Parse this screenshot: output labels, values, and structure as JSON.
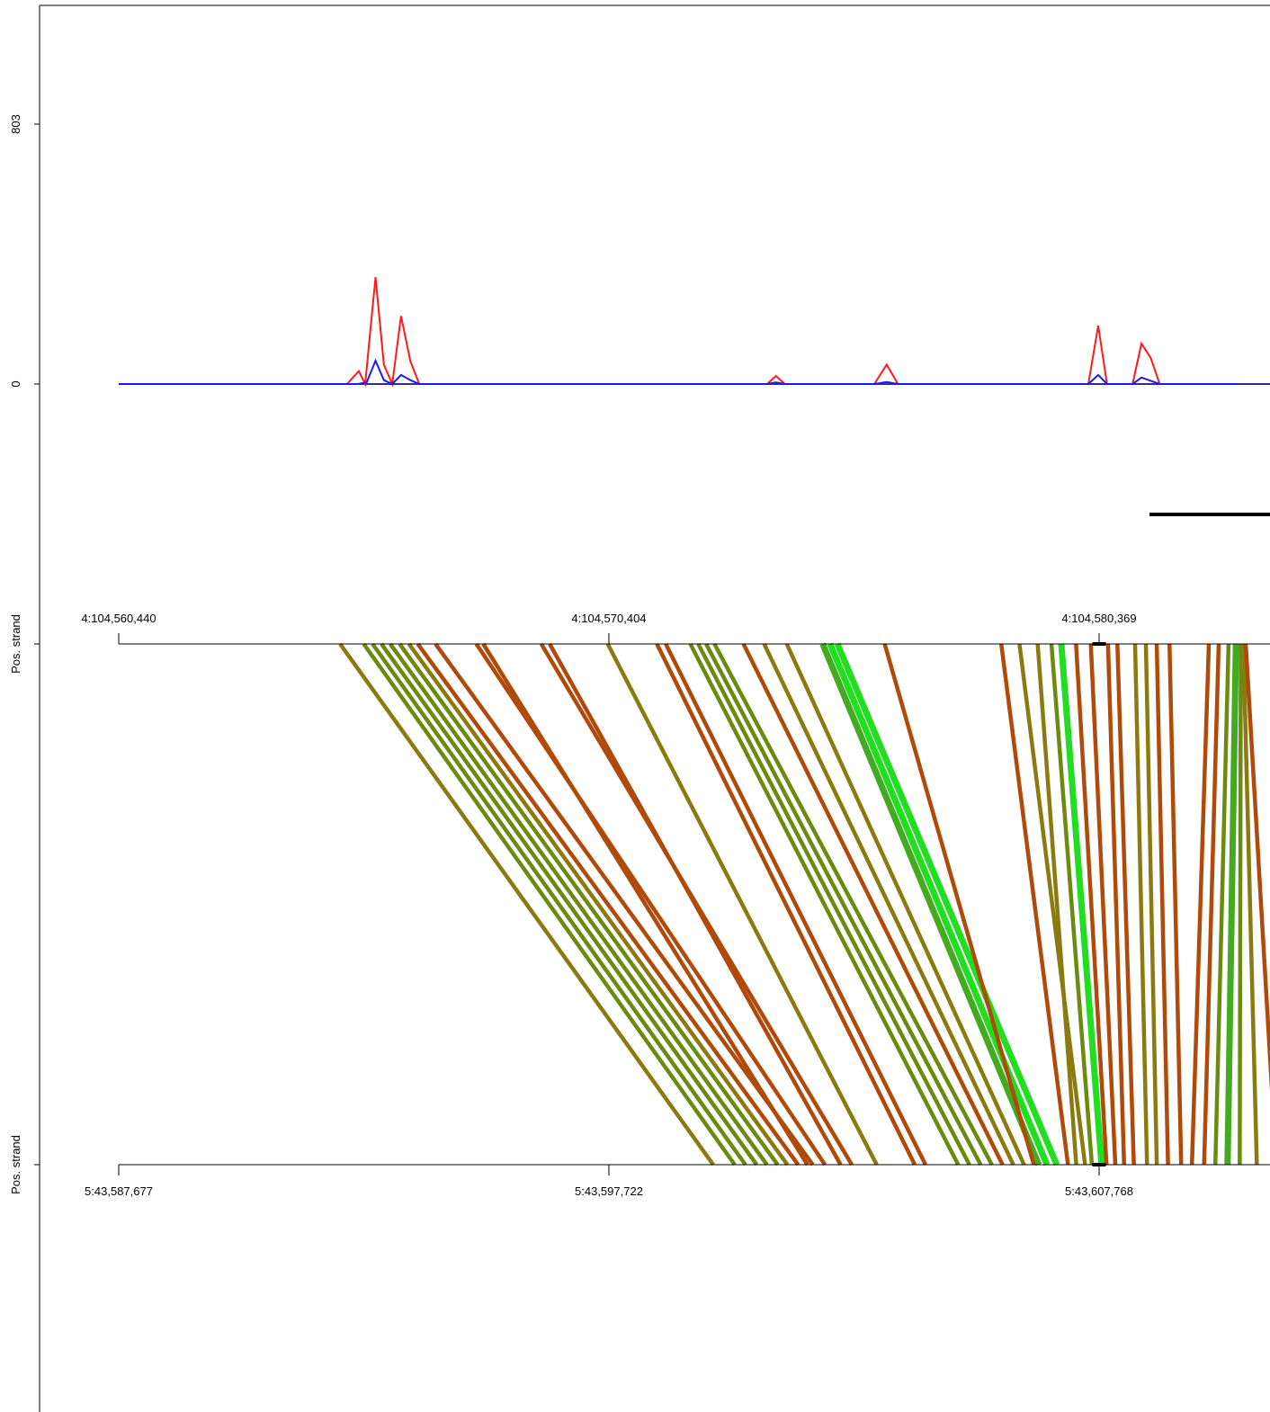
{
  "colors": {
    "signal_top": "#ff1a1a",
    "signal_bottom": "#1a1aff",
    "signal_baseline": "#3a2a8a",
    "axis": "#000000",
    "frame": "#555555",
    "link_orange": "#b04a0a",
    "link_olive": "#8a7a10",
    "link_olive_green": "#6a8a10",
    "link_green": "#22dd22",
    "link_green_mid": "#44aa22"
  },
  "chart_data": [
    {
      "type": "line",
      "title": "",
      "ylabel": "",
      "yticks": [
        "0",
        "803"
      ],
      "ylim": [
        0,
        803
      ],
      "x_range": [
        104560440,
        104583200
      ],
      "series": [
        {
          "color_key": "signal_top",
          "points": [
            [
              104560440,
              0
            ],
            [
              104565080,
              0
            ],
            [
              104565320,
              40
            ],
            [
              104565450,
              0
            ],
            [
              104565660,
              330
            ],
            [
              104565830,
              60
            ],
            [
              104566000,
              0
            ],
            [
              104566180,
              210
            ],
            [
              104566370,
              70
            ],
            [
              104566550,
              0
            ],
            [
              104573620,
              0
            ],
            [
              104573800,
              25
            ],
            [
              104573980,
              0
            ],
            [
              104575800,
              0
            ],
            [
              104576050,
              60
            ],
            [
              104576280,
              0
            ],
            [
              104580150,
              0
            ],
            [
              104580350,
              180
            ],
            [
              104580530,
              0
            ],
            [
              104581050,
              0
            ],
            [
              104581230,
              125
            ],
            [
              104581420,
              80
            ],
            [
              104581600,
              0
            ],
            [
              104583200,
              0
            ]
          ]
        },
        {
          "color_key": "signal_bottom",
          "points": [
            [
              104560440,
              0
            ],
            [
              104565300,
              0
            ],
            [
              104565480,
              5
            ],
            [
              104565660,
              72
            ],
            [
              104565830,
              12
            ],
            [
              104566000,
              0
            ],
            [
              104566180,
              28
            ],
            [
              104566370,
              12
            ],
            [
              104566550,
              0
            ],
            [
              104573620,
              0
            ],
            [
              104573800,
              5
            ],
            [
              104573980,
              0
            ],
            [
              104575800,
              0
            ],
            [
              104576050,
              6
            ],
            [
              104576280,
              0
            ],
            [
              104580150,
              0
            ],
            [
              104580350,
              28
            ],
            [
              104580530,
              0
            ],
            [
              104581050,
              0
            ],
            [
              104581230,
              20
            ],
            [
              104581420,
              10
            ],
            [
              104581600,
              0
            ],
            [
              104583200,
              0
            ]
          ]
        }
      ]
    },
    {
      "type": "link",
      "top_axis": {
        "ylabel": "Pos. strand",
        "ticks": [
          {
            "value": 104560440,
            "label": "4:104,560,440"
          },
          {
            "value": 104570404,
            "label": "4:104,570,404"
          },
          {
            "value": 104580369,
            "label": "4:104,580,369"
          }
        ]
      },
      "bottom_axis": {
        "ylabel": "Pos. strand",
        "ticks": [
          {
            "value": 43587677,
            "label": "5:43,587,677"
          },
          {
            "value": 43597722,
            "label": "5:43,597,722"
          },
          {
            "value": 43607768,
            "label": "5:43,607,768"
          }
        ]
      },
      "links": [
        {
          "top": 104564940,
          "bottom": 43599860,
          "color_key": "link_olive"
        },
        {
          "top": 104565420,
          "bottom": 43600300,
          "color_key": "link_olive_green"
        },
        {
          "top": 104565600,
          "bottom": 43600520,
          "color_key": "link_olive_green"
        },
        {
          "top": 104565780,
          "bottom": 43600750,
          "color_key": "link_olive_green"
        },
        {
          "top": 104565960,
          "bottom": 43600960,
          "color_key": "link_olive_green"
        },
        {
          "top": 104566150,
          "bottom": 43601180,
          "color_key": "link_olive_green"
        },
        {
          "top": 104566340,
          "bottom": 43601380,
          "color_key": "link_olive"
        },
        {
          "top": 104566520,
          "bottom": 43601600,
          "color_key": "link_orange"
        },
        {
          "top": 104566880,
          "bottom": 43601900,
          "color_key": "link_orange"
        },
        {
          "top": 104567710,
          "bottom": 43602150,
          "color_key": "link_orange"
        },
        {
          "top": 104567850,
          "bottom": 43601790,
          "color_key": "link_orange"
        },
        {
          "top": 104569030,
          "bottom": 43602700,
          "color_key": "link_orange"
        },
        {
          "top": 104569200,
          "bottom": 43602470,
          "color_key": "link_orange"
        },
        {
          "top": 104570380,
          "bottom": 43603210,
          "color_key": "link_olive"
        },
        {
          "top": 104571380,
          "bottom": 43603990,
          "color_key": "link_orange"
        },
        {
          "top": 104571560,
          "bottom": 43604210,
          "color_key": "link_orange"
        },
        {
          "top": 104572060,
          "bottom": 43604880,
          "color_key": "link_olive_green"
        },
        {
          "top": 104572220,
          "bottom": 43605110,
          "color_key": "link_olive_green"
        },
        {
          "top": 104572380,
          "bottom": 43605340,
          "color_key": "link_olive_green"
        },
        {
          "top": 104572550,
          "bottom": 43605570,
          "color_key": "link_olive_green"
        },
        {
          "top": 104573140,
          "bottom": 43605790,
          "color_key": "link_orange"
        },
        {
          "top": 104573560,
          "bottom": 43606010,
          "color_key": "link_olive"
        },
        {
          "top": 104574020,
          "bottom": 43606230,
          "color_key": "link_olive"
        },
        {
          "top": 104574750,
          "bottom": 43606530,
          "color_key": "link_green_mid"
        },
        {
          "top": 104574900,
          "bottom": 43606700,
          "color_key": "link_green"
        },
        {
          "top": 104575050,
          "bottom": 43606900,
          "color_key": "link_green"
        },
        {
          "top": 104576010,
          "bottom": 43606430,
          "color_key": "link_orange"
        },
        {
          "top": 104578380,
          "bottom": 43607130,
          "color_key": "link_orange"
        },
        {
          "top": 104578750,
          "bottom": 43607480,
          "color_key": "link_olive"
        },
        {
          "top": 104579120,
          "bottom": 43607300,
          "color_key": "link_olive"
        },
        {
          "top": 104579400,
          "bottom": 43607620,
          "color_key": "link_olive_green"
        },
        {
          "top": 104579600,
          "bottom": 43607820,
          "color_key": "link_green"
        },
        {
          "top": 104579900,
          "bottom": 43607920,
          "color_key": "link_orange"
        },
        {
          "top": 104580200,
          "bottom": 43608100,
          "color_key": "link_orange"
        },
        {
          "top": 104580550,
          "bottom": 43608280,
          "color_key": "link_orange"
        },
        {
          "top": 104580740,
          "bottom": 43608480,
          "color_key": "link_orange"
        },
        {
          "top": 104581100,
          "bottom": 43608750,
          "color_key": "link_olive"
        },
        {
          "top": 104581320,
          "bottom": 43608950,
          "color_key": "link_olive"
        },
        {
          "top": 104581540,
          "bottom": 43609180,
          "color_key": "link_orange"
        },
        {
          "top": 104581800,
          "bottom": 43609450,
          "color_key": "link_orange"
        },
        {
          "top": 104582600,
          "bottom": 43609670,
          "color_key": "link_orange"
        },
        {
          "top": 104582800,
          "bottom": 43609920,
          "color_key": "link_orange"
        },
        {
          "top": 104583000,
          "bottom": 43610150,
          "color_key": "link_olive_green"
        },
        {
          "top": 104583150,
          "bottom": 43610400,
          "color_key": "link_green_mid"
        },
        {
          "top": 104583250,
          "bottom": 43610650,
          "color_key": "link_olive_green"
        },
        {
          "top": 104583300,
          "bottom": 43611000,
          "color_key": "link_olive"
        },
        {
          "top": 104583350,
          "bottom": 43611400,
          "color_key": "link_orange"
        }
      ],
      "highlight": {
        "top": 104580369,
        "bottom": 43607768
      }
    }
  ]
}
